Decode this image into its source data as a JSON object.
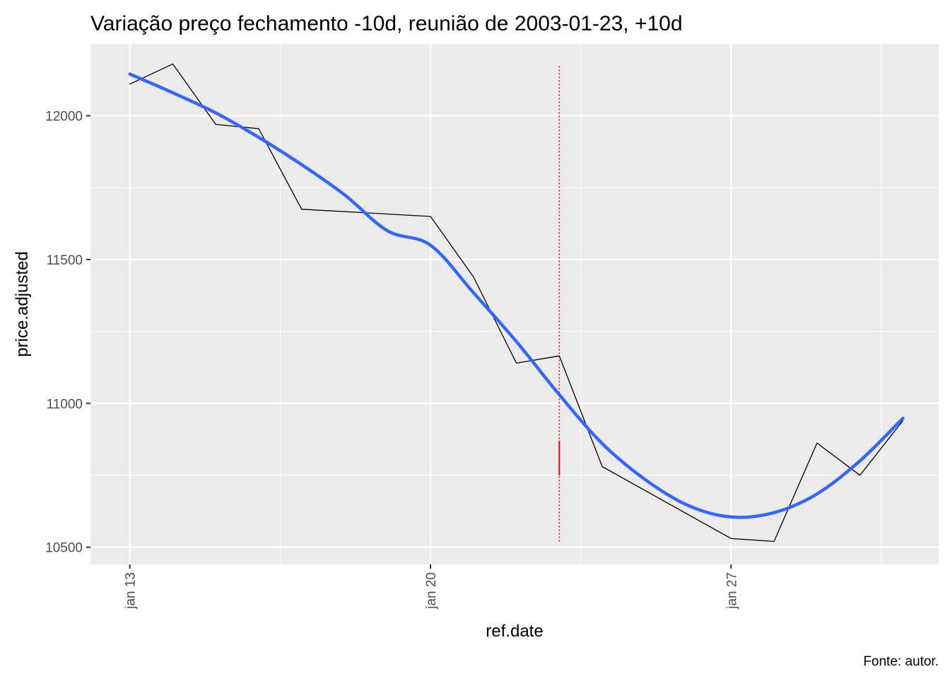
{
  "chart_data": {
    "type": "line",
    "title": "Variação preço fechamento -10d, reunião de 2003-01-23, +10d",
    "xlabel": "ref.date",
    "ylabel": "price.adjusted",
    "caption": "Fonte: autor.",
    "x_ticks": [
      {
        "date": "2003-01-13",
        "label": "jan 13"
      },
      {
        "date": "2003-01-20",
        "label": "jan 20"
      },
      {
        "date": "2003-01-27",
        "label": "jan 27"
      }
    ],
    "y_ticks": [
      {
        "value": 10500,
        "label": "10500"
      },
      {
        "value": 11000,
        "label": "11000"
      },
      {
        "value": 11500,
        "label": "11500"
      },
      {
        "value": 12000,
        "label": "12000"
      }
    ],
    "xlim": [
      "2003-01-12 02:00",
      "2003-01-31 20:00"
    ],
    "ylim": [
      10440,
      12250
    ],
    "grid": true,
    "series": [
      {
        "style": "line",
        "color": "#000000",
        "points": [
          {
            "x": "2003-01-13",
            "y": 12110
          },
          {
            "x": "2003-01-14",
            "y": 12180
          },
          {
            "x": "2003-01-15",
            "y": 11970
          },
          {
            "x": "2003-01-16",
            "y": 11955
          },
          {
            "x": "2003-01-17",
            "y": 11675
          },
          {
            "x": "2003-01-20",
            "y": 11650
          },
          {
            "x": "2003-01-21",
            "y": 11440
          },
          {
            "x": "2003-01-22",
            "y": 11140
          },
          {
            "x": "2003-01-23",
            "y": 11165
          },
          {
            "x": "2003-01-24",
            "y": 10780
          },
          {
            "x": "2003-01-27",
            "y": 10530
          },
          {
            "x": "2003-01-28",
            "y": 10520
          },
          {
            "x": "2003-01-29",
            "y": 10862
          },
          {
            "x": "2003-01-30",
            "y": 10750
          },
          {
            "x": "2003-01-31",
            "y": 10940
          }
        ]
      },
      {
        "style": "smooth",
        "color": "#3366ff",
        "points": [
          {
            "x": "2003-01-13",
            "y": 12145
          },
          {
            "x": "2003-01-14",
            "y": 12080
          },
          {
            "x": "2003-01-15",
            "y": 12010
          },
          {
            "x": "2003-01-16",
            "y": 11925
          },
          {
            "x": "2003-01-17",
            "y": 11830
          },
          {
            "x": "2003-01-18",
            "y": 11725
          },
          {
            "x": "2003-01-19",
            "y": 11600
          },
          {
            "x": "2003-01-20",
            "y": 11550
          },
          {
            "x": "2003-01-21",
            "y": 11385
          },
          {
            "x": "2003-01-22",
            "y": 11215
          },
          {
            "x": "2003-01-23",
            "y": 11030
          },
          {
            "x": "2003-01-24",
            "y": 10860
          },
          {
            "x": "2003-01-25",
            "y": 10735
          },
          {
            "x": "2003-01-26",
            "y": 10645
          },
          {
            "x": "2003-01-27",
            "y": 10605
          },
          {
            "x": "2003-01-28",
            "y": 10620
          },
          {
            "x": "2003-01-29",
            "y": 10685
          },
          {
            "x": "2003-01-30",
            "y": 10800
          },
          {
            "x": "2003-01-31",
            "y": 10948
          }
        ]
      }
    ],
    "reference_lines": [
      {
        "x": "2003-01-23",
        "y_from": 10520,
        "y_to": 12180,
        "color": "#ff0000",
        "style": "dotted"
      },
      {
        "x": "2003-01-23",
        "y_from": 10750,
        "y_to": 10870,
        "color": "#ff0000",
        "style": "solid"
      }
    ]
  }
}
